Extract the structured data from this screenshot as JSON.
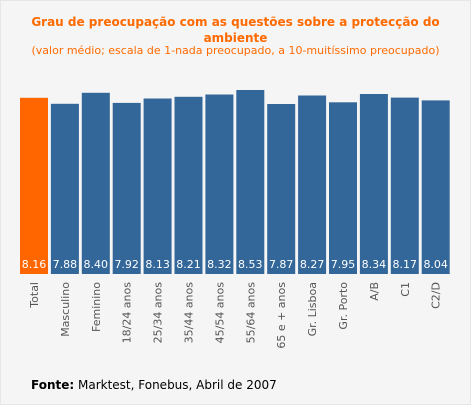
{
  "chart_data": {
    "type": "bar",
    "title": "Grau de preocupação com as questões sobre a protecção do ambiente",
    "subtitle": "(valor médio; escala de 1-nada preocupado, a 10-muitíssimo preocupado)",
    "categories": [
      "Total",
      "Masculino",
      "Feminino",
      "18/24 anos",
      "25/34 anos",
      "35/44 anos",
      "45/54 anos",
      "55/64 anos",
      "65 e + anos",
      "Gr. Lisboa",
      "Gr. Porto",
      "A/B",
      "C1",
      "C2/D"
    ],
    "values": [
      8.16,
      7.88,
      8.4,
      7.92,
      8.13,
      8.21,
      8.32,
      8.53,
      7.87,
      8.27,
      7.95,
      8.34,
      8.17,
      8.04
    ],
    "value_labels": [
      "8.16",
      "7.88",
      "8.40",
      "7.92",
      "8.13",
      "8.21",
      "8.32",
      "8.53",
      "7.87",
      "8.27",
      "7.95",
      "8.34",
      "8.17",
      "8.04"
    ],
    "highlight_index": 0,
    "colors": {
      "bar": "#336699",
      "highlight": "#ff6600",
      "label": "#ffffff",
      "title": "#ff6a00",
      "tick": "#555555"
    },
    "grid": false,
    "legend": "none"
  },
  "source": {
    "label": "Fonte:",
    "text": "Marktest, Fonebus, Abril de 2007"
  }
}
